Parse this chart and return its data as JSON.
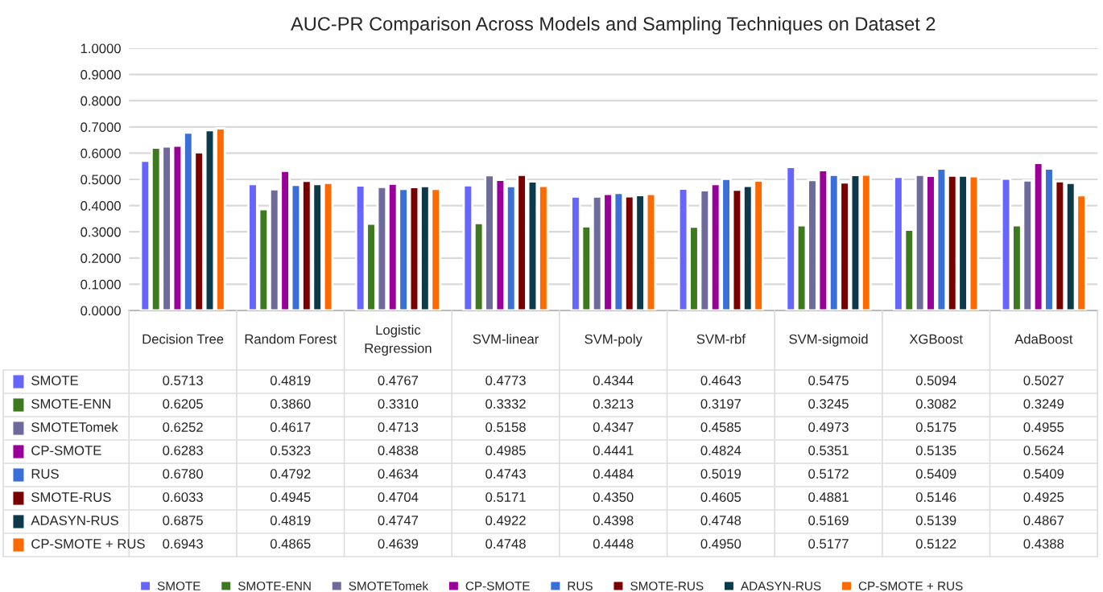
{
  "chart_data": {
    "type": "bar",
    "title": "AUC-PR Comparison Across Models and Sampling Techniques on Dataset 2",
    "categories": [
      "Decision Tree",
      "Random Forest",
      "Logistic Regression",
      "SVM-linear",
      "SVM-poly",
      "SVM-rbf",
      "SVM-sigmoid",
      "XGBoost",
      "AdaBoost"
    ],
    "series": [
      {
        "name": "SMOTE",
        "color": "#6666ff",
        "values": [
          0.5713,
          0.4819,
          0.4767,
          0.4773,
          0.4344,
          0.4643,
          0.5475,
          0.5094,
          0.5027
        ],
        "value_labels": [
          "0.5713",
          "0.4819",
          "0.4767",
          "0.4773",
          "0.4344",
          "0.4643",
          "0.5475",
          "0.5094",
          "0.5027"
        ]
      },
      {
        "name": "SMOTE-ENN",
        "color": "#3d7a1f",
        "values": [
          0.6205,
          0.386,
          0.331,
          0.3332,
          0.3213,
          0.3197,
          0.3245,
          0.3082,
          0.3249
        ],
        "value_labels": [
          "0.6205",
          "0.3860",
          "0.3310",
          "0.3332",
          "0.3213",
          "0.3197",
          "0.3245",
          "0.3082",
          "0.3249"
        ]
      },
      {
        "name": "SMOTETomek",
        "color": "#6e6a9c",
        "values": [
          0.6252,
          0.4617,
          0.4713,
          0.5158,
          0.4347,
          0.4585,
          0.4973,
          0.5175,
          0.4955
        ],
        "value_labels": [
          "0.6252",
          "0.4617",
          "0.4713",
          "0.5158",
          "0.4347",
          "0.4585",
          "0.4973",
          "0.5175",
          "0.4955"
        ]
      },
      {
        "name": "CP-SMOTE",
        "color": "#990099",
        "values": [
          0.6283,
          0.5323,
          0.4838,
          0.4985,
          0.4441,
          0.4824,
          0.5351,
          0.5135,
          0.5624
        ],
        "value_labels": [
          "0.6283",
          "0.5323",
          "0.4838",
          "0.4985",
          "0.4441",
          "0.4824",
          "0.5351",
          "0.5135",
          "0.5624"
        ]
      },
      {
        "name": "RUS",
        "color": "#3a6fd8",
        "values": [
          0.678,
          0.4792,
          0.4634,
          0.4743,
          0.4484,
          0.5019,
          0.5172,
          0.5409,
          0.5409
        ],
        "value_labels": [
          "0.6780",
          "0.4792",
          "0.4634",
          "0.4743",
          "0.4484",
          "0.5019",
          "0.5172",
          "0.5409",
          "0.5409"
        ]
      },
      {
        "name": "SMOTE-RUS",
        "color": "#7a0000",
        "values": [
          0.6033,
          0.4945,
          0.4704,
          0.5171,
          0.435,
          0.4605,
          0.4881,
          0.5146,
          0.4925
        ],
        "value_labels": [
          "0.6033",
          "0.4945",
          "0.4704",
          "0.5171",
          "0.4350",
          "0.4605",
          "0.4881",
          "0.5146",
          "0.4925"
        ]
      },
      {
        "name": "ADASYN-RUS",
        "color": "#0d3a4a",
        "values": [
          0.6875,
          0.4819,
          0.4747,
          0.4922,
          0.4398,
          0.4748,
          0.5169,
          0.5139,
          0.4867
        ],
        "value_labels": [
          "0.6875",
          "0.4819",
          "0.4747",
          "0.4922",
          "0.4398",
          "0.4748",
          "0.5169",
          "0.5139",
          "0.4867"
        ]
      },
      {
        "name": "CP-SMOTE + RUS",
        "color": "#ff6a00",
        "values": [
          0.6943,
          0.4865,
          0.4639,
          0.4748,
          0.4448,
          0.495,
          0.5177,
          0.5122,
          0.4388
        ],
        "value_labels": [
          "0.6943",
          "0.4865",
          "0.4639",
          "0.4748",
          "0.4448",
          "0.4950",
          "0.5177",
          "0.5122",
          "0.4388"
        ]
      }
    ],
    "ylim": [
      0,
      1
    ],
    "yticks": [
      {
        "value": 0,
        "label": "0.0000"
      },
      {
        "value": 0.1,
        "label": "0.1000"
      },
      {
        "value": 0.2,
        "label": "0.2000"
      },
      {
        "value": 0.3,
        "label": "0.3000"
      },
      {
        "value": 0.4,
        "label": "0.4000"
      },
      {
        "value": 0.5,
        "label": "0.5000"
      },
      {
        "value": 0.6,
        "label": "0.6000"
      },
      {
        "value": 0.7,
        "label": "0.7000"
      },
      {
        "value": 0.8,
        "label": "0.8000"
      },
      {
        "value": 0.9,
        "label": "0.9000"
      },
      {
        "value": 1.0,
        "label": "1.0000"
      }
    ],
    "grid": "y",
    "legend": "bottom"
  }
}
